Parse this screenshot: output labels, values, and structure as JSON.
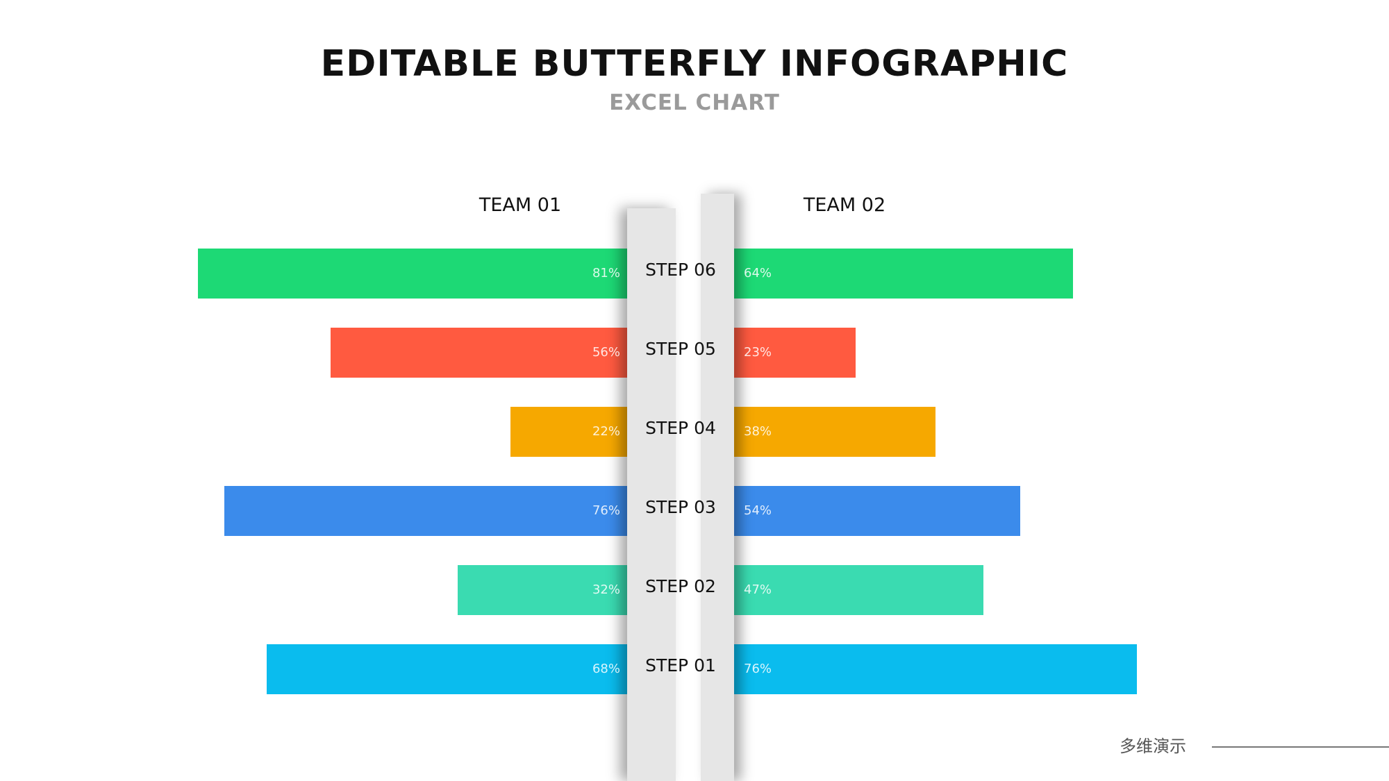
{
  "title": "EDITABLE BUTTERFLY INFOGRAPHIC",
  "subtitle": "EXCEL CHART",
  "footer": "多维演示",
  "chart_data": {
    "type": "bar",
    "orientation": "butterfly",
    "title": "EDITABLE BUTTERFLY INFOGRAPHIC",
    "subtitle": "EXCEL CHART",
    "categories": [
      "STEP 06",
      "STEP 05",
      "STEP 04",
      "STEP 03",
      "STEP 02",
      "STEP 01"
    ],
    "colors": [
      "#1dd975",
      "#ff5a40",
      "#f6a800",
      "#3b8beb",
      "#3adbb1",
      "#0abcee"
    ],
    "series": [
      {
        "name": "TEAM 01",
        "side": "left",
        "values": [
          81,
          56,
          22,
          76,
          32,
          68
        ],
        "labels": [
          "81%",
          "56%",
          "22%",
          "76%",
          "32%",
          "68%"
        ]
      },
      {
        "name": "TEAM 02",
        "side": "right",
        "values": [
          64,
          23,
          38,
          54,
          47,
          76
        ],
        "labels": [
          "64%",
          "23%",
          "38%",
          "54%",
          "47%",
          "76%"
        ]
      }
    ],
    "xlim": [
      0,
      100
    ],
    "unit": "%"
  }
}
